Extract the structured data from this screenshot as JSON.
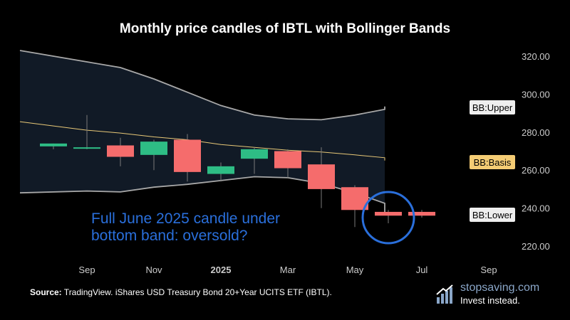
{
  "chart_data": {
    "type": "candlestick",
    "title": "Monthly price candles of IBTL with Bollinger Bands",
    "x_tick_labels": [
      "Sep",
      "Nov",
      "2025",
      "Mar",
      "May",
      "Jul",
      "Sep"
    ],
    "y_ticks": [
      220,
      240,
      260,
      280,
      300,
      320
    ],
    "y_tick_labels": [
      "220.00",
      "240.00",
      "260.00",
      "280.00",
      "300.00",
      "320.00"
    ],
    "ylim": [
      212,
      328
    ],
    "candles": [
      {
        "month": "2024-08",
        "open": 272.5,
        "high": 274,
        "low": 271,
        "close": 274
      },
      {
        "month": "2024-09",
        "open": 272,
        "high": 289,
        "low": 271,
        "close": 272
      },
      {
        "month": "2024-10",
        "open": 273,
        "high": 277,
        "low": 262,
        "close": 267
      },
      {
        "month": "2024-11",
        "open": 268,
        "high": 276,
        "low": 260,
        "close": 275
      },
      {
        "month": "2024-12",
        "open": 276,
        "high": 279,
        "low": 254,
        "close": 259
      },
      {
        "month": "2025-01",
        "open": 258,
        "high": 264,
        "low": 254,
        "close": 262
      },
      {
        "month": "2025-02",
        "open": 266,
        "high": 272,
        "low": 258,
        "close": 271
      },
      {
        "month": "2025-03",
        "open": 270,
        "high": 271,
        "low": 256,
        "close": 261
      },
      {
        "month": "2025-04",
        "open": 263,
        "high": 272,
        "low": 240,
        "close": 250
      },
      {
        "month": "2025-05",
        "open": 251,
        "high": 252,
        "low": 230,
        "close": 239
      },
      {
        "month": "2025-06",
        "open": 238,
        "high": 239,
        "low": 232,
        "close": 236
      },
      {
        "month": "2025-07",
        "open": 238,
        "high": 239,
        "low": 235,
        "close": 236
      }
    ],
    "bb_upper": [
      {
        "month": "2024-07",
        "value": 323
      },
      {
        "month": "2024-09",
        "value": 317
      },
      {
        "month": "2024-10",
        "value": 314
      },
      {
        "month": "2024-11",
        "value": 308
      },
      {
        "month": "2024-12",
        "value": 301
      },
      {
        "month": "2025-01",
        "value": 294
      },
      {
        "month": "2025-02",
        "value": 289
      },
      {
        "month": "2025-03",
        "value": 287
      },
      {
        "month": "2025-04",
        "value": 286.5
      },
      {
        "month": "2025-05",
        "value": 289
      },
      {
        "month": "2025-06",
        "value": 292
      },
      {
        "month": "2025-07",
        "value": 293.5
      }
    ],
    "bb_basis": [
      {
        "month": "2024-07",
        "value": 285.5
      },
      {
        "month": "2024-09",
        "value": 281
      },
      {
        "month": "2024-10",
        "value": 279.5
      },
      {
        "month": "2024-11",
        "value": 277.5
      },
      {
        "month": "2024-12",
        "value": 276
      },
      {
        "month": "2025-01",
        "value": 273.5
      },
      {
        "month": "2025-02",
        "value": 272
      },
      {
        "month": "2025-03",
        "value": 270.5
      },
      {
        "month": "2025-04",
        "value": 269.5
      },
      {
        "month": "2025-05",
        "value": 268
      },
      {
        "month": "2025-06",
        "value": 266.5
      },
      {
        "month": "2025-07",
        "value": 265
      }
    ],
    "bb_lower": [
      {
        "month": "2024-07",
        "value": 248
      },
      {
        "month": "2024-09",
        "value": 249
      },
      {
        "month": "2024-10",
        "value": 248.5
      },
      {
        "month": "2024-11",
        "value": 251
      },
      {
        "month": "2024-12",
        "value": 252.5
      },
      {
        "month": "2025-01",
        "value": 254.5
      },
      {
        "month": "2025-02",
        "value": 256.5
      },
      {
        "month": "2025-03",
        "value": 256
      },
      {
        "month": "2025-04",
        "value": 253
      },
      {
        "month": "2025-05",
        "value": 248
      },
      {
        "month": "2025-06",
        "value": 242.5
      },
      {
        "month": "2025-07",
        "value": 237
      }
    ],
    "bb_labels": {
      "upper": "BB:Upper",
      "basis": "BB:Basis",
      "lower": "BB:Lower"
    },
    "annotation": {
      "lines": [
        "Full June 2025 candle under",
        "bottom band: oversold?"
      ],
      "circled_month": "2025-06"
    },
    "colors": {
      "background": "#000000",
      "band_fill": "#111a26",
      "band_line": "#a8a8a8",
      "basis_line": "#e8c877",
      "up_candle": "#2ebd85",
      "down_candle": "#f56c6c",
      "wick": "#7a7a7a",
      "axis_text": "#cccccc",
      "annotation": "#2a6fdb"
    }
  },
  "source": {
    "label": "Source:",
    "text": " TradingView. iShares USD Treasury Bond 20+Year UCITS ETF (IBTL)."
  },
  "brand": {
    "name": "stopsaving.com",
    "tagline": "Invest instead."
  }
}
